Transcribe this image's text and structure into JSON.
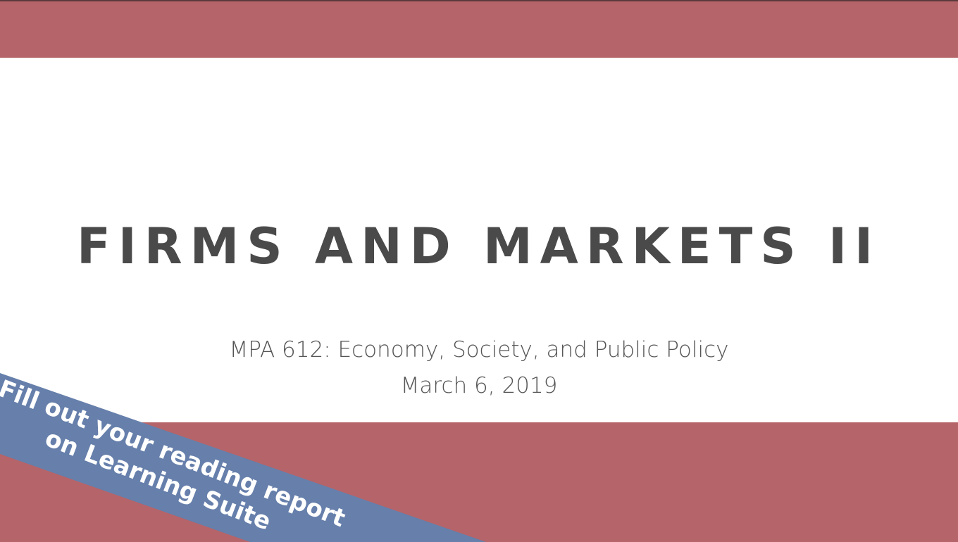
{
  "slide": {
    "title": "FIRMS AND MARKETS II",
    "subtitle": "MPA 612: Economy, Society, and Public Policy",
    "date": "March 6, 2019"
  },
  "banner": {
    "lines": [
      "Fill out your reading report",
      "on Learning Suite"
    ]
  }
}
